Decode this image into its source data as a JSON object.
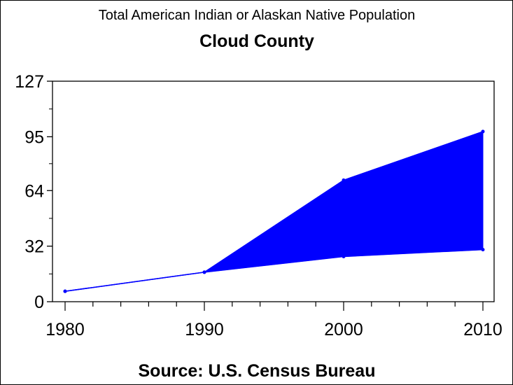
{
  "chart_data": {
    "type": "area",
    "title": "Total American Indian or Alaskan Native Population",
    "subtitle": "Cloud County",
    "footnote": "Source: U.S. Census Bureau",
    "xlabel": "",
    "ylabel": "",
    "x": [
      1980,
      1990,
      2000,
      2010
    ],
    "x_ticks": [
      "1980",
      "1990",
      "2000",
      "2010"
    ],
    "y_ticks": [
      "0",
      "32",
      "64",
      "95",
      "127"
    ],
    "y_tick_values": [
      0,
      32,
      64,
      95,
      127
    ],
    "ylim": [
      0,
      127
    ],
    "xlim": [
      1978,
      2011.5
    ],
    "series": [
      {
        "name": "lower",
        "values": [
          6,
          17,
          26,
          30
        ]
      },
      {
        "name": "upper",
        "values": [
          6,
          17,
          70,
          98
        ]
      }
    ],
    "fill_between": true,
    "color": "#0000ff",
    "grid": false,
    "legend": "none"
  }
}
